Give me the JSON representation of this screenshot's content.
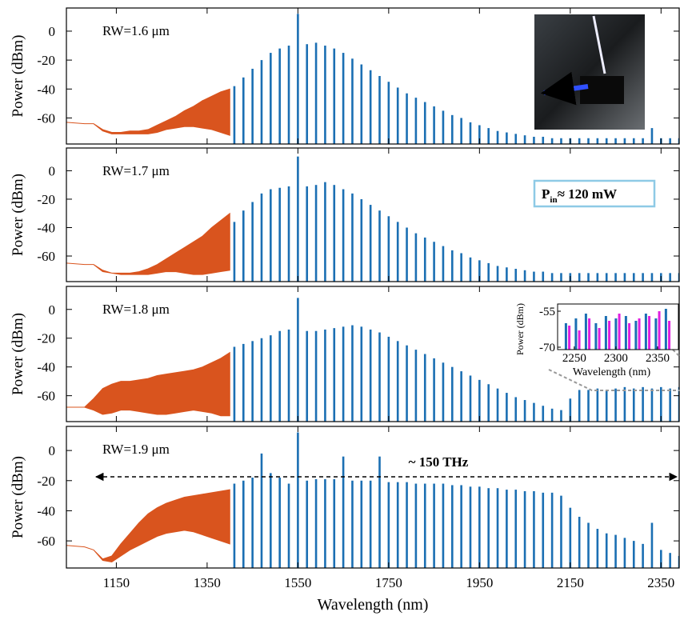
{
  "chart_data": [
    {
      "type": "spectrum",
      "label": "RW=1.6 μm",
      "ylabel": "Power (dBm)",
      "xlim": [
        1040,
        2390
      ],
      "ylim": [
        -78,
        16
      ],
      "yticks": [
        0,
        -20,
        -40,
        -60
      ],
      "comb": {
        "color": "#1b6fb3",
        "x": [
          1410,
          1430,
          1450,
          1470,
          1490,
          1510,
          1530,
          1550,
          1570,
          1590,
          1610,
          1630,
          1650,
          1670,
          1690,
          1710,
          1730,
          1750,
          1770,
          1790,
          1810,
          1830,
          1850,
          1870,
          1890,
          1910,
          1930,
          1950,
          1970,
          1990,
          2010,
          2030,
          2050,
          2070,
          2090,
          2110,
          2130,
          2150,
          2170,
          2190,
          2210,
          2230,
          2250,
          2270,
          2290,
          2310,
          2330,
          2350,
          2370,
          2390
        ],
        "values": [
          -38,
          -32,
          -26,
          -20,
          -15,
          -12,
          -10,
          12,
          -9,
          -8,
          -10,
          -12,
          -15,
          -19,
          -23,
          -27,
          -31,
          -35,
          -39,
          -43,
          -46,
          -49,
          -52,
          -55,
          -58,
          -60,
          -63,
          -65,
          -67,
          -69,
          -70,
          -71,
          -72,
          -73,
          -73,
          -74,
          -74,
          -74,
          -74,
          -74,
          -74,
          -74,
          -74,
          -74,
          -74,
          -74,
          -67,
          -74,
          -74,
          -74
        ]
      },
      "floor": {
        "color": "#d9541e",
        "x": [
          1040,
          1080,
          1100,
          1120,
          1140,
          1160,
          1180,
          1200,
          1220,
          1240,
          1260,
          1280,
          1300,
          1320,
          1340,
          1360,
          1380,
          1400
        ],
        "upper": [
          -63,
          -64,
          -64,
          -68,
          -70,
          -70,
          -69,
          -69,
          -68,
          -65,
          -62,
          -59,
          -55,
          -52,
          -48,
          -45,
          -42,
          -40
        ],
        "lower": [
          -63,
          -64,
          -64,
          -69,
          -71,
          -71,
          -71,
          -71,
          -71,
          -70,
          -68,
          -67,
          -66,
          -66,
          -67,
          -68,
          -70,
          -72
        ]
      }
    },
    {
      "type": "spectrum",
      "label": "RW=1.7 μm",
      "ylabel": "Power (dBm)",
      "xlim": [
        1040,
        2390
      ],
      "ylim": [
        -78,
        16
      ],
      "yticks": [
        0,
        -20,
        -40,
        -60
      ],
      "annotation": {
        "main": "P",
        "sub": "in",
        "rest": "≈ 120 mW"
      },
      "comb": {
        "color": "#1b6fb3",
        "x": [
          1410,
          1430,
          1450,
          1470,
          1490,
          1510,
          1530,
          1550,
          1570,
          1590,
          1610,
          1630,
          1650,
          1670,
          1690,
          1710,
          1730,
          1750,
          1770,
          1790,
          1810,
          1830,
          1850,
          1870,
          1890,
          1910,
          1930,
          1950,
          1970,
          1990,
          2010,
          2030,
          2050,
          2070,
          2090,
          2110,
          2130,
          2150,
          2170,
          2190,
          2210,
          2230,
          2250,
          2270,
          2290,
          2310,
          2330,
          2350,
          2370,
          2390
        ],
        "values": [
          -36,
          -28,
          -22,
          -16,
          -13,
          -12,
          -11,
          10,
          -11,
          -10,
          -8,
          -10,
          -13,
          -16,
          -20,
          -24,
          -28,
          -32,
          -36,
          -40,
          -44,
          -47,
          -50,
          -53,
          -56,
          -58,
          -61,
          -63,
          -65,
          -67,
          -68,
          -69,
          -70,
          -71,
          -71,
          -72,
          -72,
          -72,
          -72,
          -72,
          -72,
          -72,
          -72,
          -72,
          -72,
          -72,
          -72,
          -72,
          -72,
          -72
        ]
      },
      "floor": {
        "color": "#d9541e",
        "x": [
          1040,
          1080,
          1100,
          1120,
          1140,
          1160,
          1180,
          1200,
          1220,
          1240,
          1260,
          1280,
          1300,
          1320,
          1340,
          1360,
          1380,
          1400
        ],
        "upper": [
          -65,
          -66,
          -66,
          -70,
          -72,
          -72,
          -72,
          -71,
          -69,
          -66,
          -62,
          -58,
          -54,
          -50,
          -46,
          -40,
          -35,
          -30
        ],
        "lower": [
          -65,
          -66,
          -66,
          -71,
          -72,
          -73,
          -73,
          -73,
          -73,
          -72,
          -71,
          -71,
          -72,
          -73,
          -73,
          -72,
          -71,
          -70
        ]
      }
    },
    {
      "type": "spectrum",
      "label": "RW=1.8 μm",
      "ylabel": "Power (dBm)",
      "xlim": [
        1040,
        2390
      ],
      "ylim": [
        -78,
        16
      ],
      "yticks": [
        0,
        -20,
        -40,
        -60
      ],
      "comb": {
        "color": "#1b6fb3",
        "x": [
          1410,
          1430,
          1450,
          1470,
          1490,
          1510,
          1530,
          1550,
          1570,
          1590,
          1610,
          1630,
          1650,
          1670,
          1690,
          1710,
          1730,
          1750,
          1770,
          1790,
          1810,
          1830,
          1850,
          1870,
          1890,
          1910,
          1930,
          1950,
          1970,
          1990,
          2010,
          2030,
          2050,
          2070,
          2090,
          2110,
          2130,
          2150,
          2170,
          2190,
          2210,
          2230,
          2250,
          2270,
          2290,
          2310,
          2330,
          2350,
          2370,
          2390
        ],
        "values": [
          -26,
          -24,
          -22,
          -20,
          -18,
          -15,
          -14,
          8,
          -15,
          -15,
          -14,
          -13,
          -12,
          -11,
          -12,
          -14,
          -16,
          -19,
          -22,
          -25,
          -28,
          -31,
          -34,
          -37,
          -40,
          -43,
          -46,
          -49,
          -52,
          -55,
          -58,
          -61,
          -63,
          -65,
          -67,
          -69,
          -70,
          -62,
          -56,
          -56,
          -55,
          -56,
          -55,
          -54,
          -55,
          -54,
          -55,
          -54,
          -55,
          -54
        ]
      },
      "floor": {
        "color": "#d9541e",
        "x": [
          1040,
          1080,
          1100,
          1120,
          1140,
          1160,
          1180,
          1200,
          1220,
          1240,
          1260,
          1280,
          1300,
          1320,
          1340,
          1360,
          1380,
          1400
        ],
        "upper": [
          -68,
          -68,
          -62,
          -55,
          -52,
          -50,
          -50,
          -49,
          -48,
          -46,
          -45,
          -44,
          -43,
          -42,
          -40,
          -37,
          -34,
          -30
        ],
        "lower": [
          -68,
          -68,
          -70,
          -73,
          -72,
          -70,
          -70,
          -71,
          -72,
          -73,
          -73,
          -72,
          -71,
          -70,
          -71,
          -72,
          -74,
          -74
        ]
      },
      "inset": {
        "type": "bar",
        "ylabel": "Power (dBm)",
        "xlabel": "Wavelength (nm)",
        "xlim": [
          2230,
          2375
        ],
        "ylim": [
          -71,
          -52
        ],
        "xticks": [
          2250,
          2300,
          2350
        ],
        "yticks": [
          -55,
          -70
        ],
        "series": [
          {
            "color": "#1b6fb3",
            "x": [
              2240,
              2252,
              2264,
              2276,
              2288,
              2300,
              2312,
              2324,
              2336,
              2348,
              2360
            ],
            "values": [
              -60,
              -58,
              -56,
              -60,
              -57,
              -58,
              -57,
              -59,
              -56,
              -58,
              -54
            ]
          },
          {
            "color": "#e01ee0",
            "x": [
              2244,
              2256,
              2268,
              2280,
              2292,
              2304,
              2316,
              2328,
              2340,
              2352,
              2364
            ],
            "values": [
              -61,
              -63,
              -58,
              -62,
              -59,
              -56,
              -60,
              -58,
              -57,
              -55,
              -59
            ]
          }
        ]
      }
    },
    {
      "type": "spectrum",
      "label": "RW=1.9 μm",
      "ylabel": "Power (dBm)",
      "xlabel": "Wavelength (nm)",
      "xlim": [
        1040,
        2390
      ],
      "ylim": [
        -78,
        16
      ],
      "yticks": [
        0,
        -20,
        -40,
        -60
      ],
      "xticks": [
        1150,
        1350,
        1550,
        1750,
        1950,
        2150,
        2350
      ],
      "annotation": "~ 150 THz",
      "comb": {
        "color": "#1b6fb3",
        "x": [
          1410,
          1430,
          1450,
          1470,
          1490,
          1510,
          1530,
          1550,
          1570,
          1590,
          1610,
          1630,
          1650,
          1670,
          1690,
          1710,
          1730,
          1750,
          1770,
          1790,
          1810,
          1830,
          1850,
          1870,
          1890,
          1910,
          1930,
          1950,
          1970,
          1990,
          2010,
          2030,
          2050,
          2070,
          2090,
          2110,
          2130,
          2150,
          2170,
          2190,
          2210,
          2230,
          2250,
          2270,
          2290,
          2310,
          2330,
          2350,
          2370,
          2390
        ],
        "values": [
          -22,
          -20,
          -18,
          -2,
          -15,
          -18,
          -22,
          12,
          -20,
          -19,
          -19,
          -19,
          -4,
          -20,
          -20,
          -20,
          -4,
          -21,
          -21,
          -21,
          -22,
          -22,
          -22,
          -22,
          -23,
          -23,
          -24,
          -24,
          -25,
          -25,
          -26,
          -26,
          -27,
          -27,
          -28,
          -28,
          -30,
          -38,
          -44,
          -48,
          -52,
          -55,
          -56,
          -58,
          -60,
          -62,
          -48,
          -66,
          -68,
          -70
        ]
      },
      "floor": {
        "color": "#d9541e",
        "x": [
          1040,
          1080,
          1100,
          1120,
          1140,
          1160,
          1180,
          1200,
          1220,
          1240,
          1260,
          1280,
          1300,
          1320,
          1340,
          1360,
          1380,
          1400
        ],
        "upper": [
          -63,
          -64,
          -66,
          -72,
          -70,
          -62,
          -55,
          -48,
          -42,
          -38,
          -35,
          -33,
          -31,
          -30,
          -29,
          -28,
          -27,
          -26
        ],
        "lower": [
          -63,
          -64,
          -66,
          -73,
          -74,
          -70,
          -66,
          -63,
          -60,
          -57,
          -55,
          -54,
          -53,
          -54,
          -56,
          -58,
          -60,
          -62
        ]
      }
    }
  ]
}
